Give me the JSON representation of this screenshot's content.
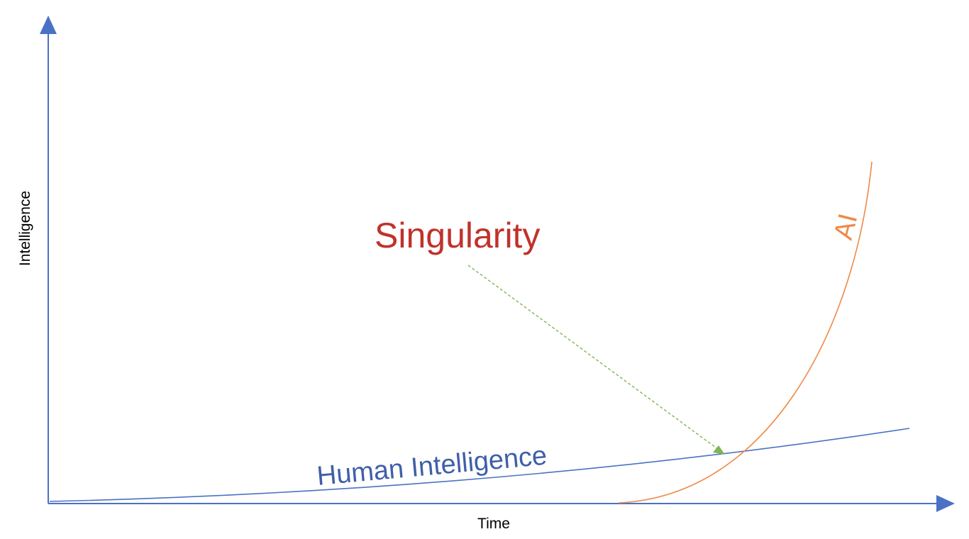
{
  "axes": {
    "x_label": "Time",
    "y_label": "Intelligence",
    "color": "#4a72c4"
  },
  "annotations": {
    "singularity": {
      "text": "Singularity",
      "color": "#c0322b"
    },
    "human_curve": {
      "text": "Human Intelligence",
      "color": "#3f5fa8"
    },
    "ai_curve": {
      "text": "AI",
      "color": "#ee8a48"
    },
    "pointer_color": "#7fb650"
  }
}
